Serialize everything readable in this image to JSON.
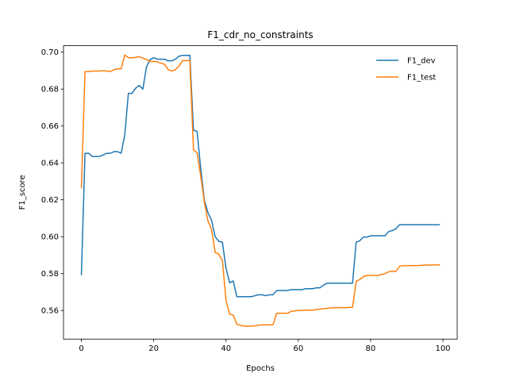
{
  "chart_data": {
    "type": "line",
    "title": "F1_cdr_no_constraints",
    "xlabel": "Epochs",
    "ylabel": "F1_score",
    "xlim": [
      -4.95,
      103.95
    ],
    "ylim": [
      0.5445,
      0.7035
    ],
    "xticks": [
      0,
      20,
      40,
      60,
      80,
      100
    ],
    "yticks": [
      0.56,
      0.58,
      0.6,
      0.62,
      0.64,
      0.66,
      0.68,
      0.7
    ],
    "ytick_labels": [
      "0.56",
      "0.58",
      "0.60",
      "0.62",
      "0.64",
      "0.66",
      "0.68",
      "0.70"
    ],
    "grid": false,
    "legend": "upper-right",
    "series": [
      {
        "name": "F1_dev",
        "color": "#1f77b4",
        "x": [
          0,
          1,
          2,
          3,
          4,
          5,
          6,
          7,
          8,
          9,
          10,
          11,
          12,
          13,
          14,
          15,
          16,
          17,
          18,
          19,
          20,
          21,
          22,
          23,
          24,
          25,
          26,
          27,
          28,
          29,
          30,
          31,
          32,
          33,
          34,
          35,
          36,
          37,
          38,
          39,
          40,
          41,
          42,
          43,
          44,
          45,
          46,
          47,
          48,
          49,
          50,
          51,
          52,
          53,
          54,
          55,
          56,
          57,
          58,
          59,
          60,
          61,
          62,
          63,
          64,
          65,
          66,
          67,
          68,
          69,
          70,
          71,
          72,
          73,
          74,
          75,
          76,
          77,
          78,
          79,
          80,
          81,
          82,
          83,
          84,
          85,
          86,
          87,
          88,
          89,
          90,
          91,
          92,
          93,
          94,
          95,
          96,
          97,
          98,
          99
        ],
        "y": [
          0.5795,
          0.6452,
          0.6452,
          0.6435,
          0.6435,
          0.6435,
          0.6443,
          0.6452,
          0.6452,
          0.6461,
          0.6461,
          0.6452,
          0.6552,
          0.6777,
          0.6777,
          0.6805,
          0.682,
          0.68,
          0.692,
          0.696,
          0.697,
          0.6962,
          0.6962,
          0.6962,
          0.6953,
          0.6953,
          0.6962,
          0.6978,
          0.6983,
          0.6983,
          0.6983,
          0.6578,
          0.657,
          0.637,
          0.62,
          0.613,
          0.609,
          0.6,
          0.5975,
          0.597,
          0.583,
          0.575,
          0.576,
          0.5675,
          0.5675,
          0.5675,
          0.5675,
          0.5675,
          0.568,
          0.5685,
          0.5685,
          0.568,
          0.5685,
          0.5685,
          0.5708,
          0.5708,
          0.5708,
          0.5708,
          0.5713,
          0.5713,
          0.5713,
          0.5713,
          0.5718,
          0.5718,
          0.5718,
          0.5723,
          0.5723,
          0.5738,
          0.5748,
          0.5748,
          0.5748,
          0.5748,
          0.5748,
          0.5748,
          0.5748,
          0.5748,
          0.597,
          0.5978,
          0.5998,
          0.5998,
          0.6005,
          0.6005,
          0.6005,
          0.6005,
          0.6005,
          0.6028,
          0.6033,
          0.6043,
          0.6065,
          0.6065,
          0.6065,
          0.6065,
          0.6065,
          0.6065,
          0.6065,
          0.6065,
          0.6065,
          0.6065,
          0.6065,
          0.6065
        ]
      },
      {
        "name": "F1_test",
        "color": "#ff7f0e",
        "x": [
          0,
          1,
          2,
          3,
          4,
          5,
          6,
          7,
          8,
          9,
          10,
          11,
          12,
          13,
          14,
          15,
          16,
          17,
          18,
          19,
          20,
          21,
          22,
          23,
          24,
          25,
          26,
          27,
          28,
          29,
          30,
          31,
          32,
          33,
          34,
          35,
          36,
          37,
          38,
          39,
          40,
          41,
          42,
          43,
          44,
          45,
          46,
          47,
          48,
          49,
          50,
          51,
          52,
          53,
          54,
          55,
          56,
          57,
          58,
          59,
          60,
          61,
          62,
          63,
          64,
          65,
          66,
          67,
          68,
          69,
          70,
          71,
          72,
          73,
          74,
          75,
          76,
          77,
          78,
          79,
          80,
          81,
          82,
          83,
          84,
          85,
          86,
          87,
          88,
          89,
          90,
          91,
          92,
          93,
          94,
          95,
          96,
          97,
          98,
          99
        ],
        "y": [
          0.6265,
          0.6895,
          0.6895,
          0.6898,
          0.6898,
          0.6898,
          0.69,
          0.6898,
          0.6895,
          0.6905,
          0.691,
          0.691,
          0.6985,
          0.697,
          0.697,
          0.6972,
          0.6975,
          0.6968,
          0.696,
          0.695,
          0.695,
          0.6948,
          0.694,
          0.6935,
          0.6905,
          0.6898,
          0.6905,
          0.6925,
          0.6955,
          0.6955,
          0.6955,
          0.647,
          0.6455,
          0.633,
          0.619,
          0.6085,
          0.604,
          0.5915,
          0.5905,
          0.587,
          0.5655,
          0.558,
          0.5575,
          0.5525,
          0.552,
          0.5515,
          0.5515,
          0.5515,
          0.5517,
          0.552,
          0.5522,
          0.5522,
          0.5522,
          0.5522,
          0.5585,
          0.5585,
          0.5585,
          0.5585,
          0.5595,
          0.5598,
          0.56,
          0.56,
          0.5602,
          0.5602,
          0.5602,
          0.5605,
          0.5608,
          0.561,
          0.5612,
          0.5614,
          0.5615,
          0.5615,
          0.5615,
          0.5615,
          0.5617,
          0.5617,
          0.5758,
          0.5768,
          0.5783,
          0.579,
          0.579,
          0.579,
          0.579,
          0.5795,
          0.58,
          0.581,
          0.5812,
          0.5812,
          0.584,
          0.5843,
          0.5843,
          0.5843,
          0.5843,
          0.5843,
          0.5845,
          0.5846,
          0.5846,
          0.5847,
          0.5847,
          0.5847
        ]
      }
    ]
  }
}
